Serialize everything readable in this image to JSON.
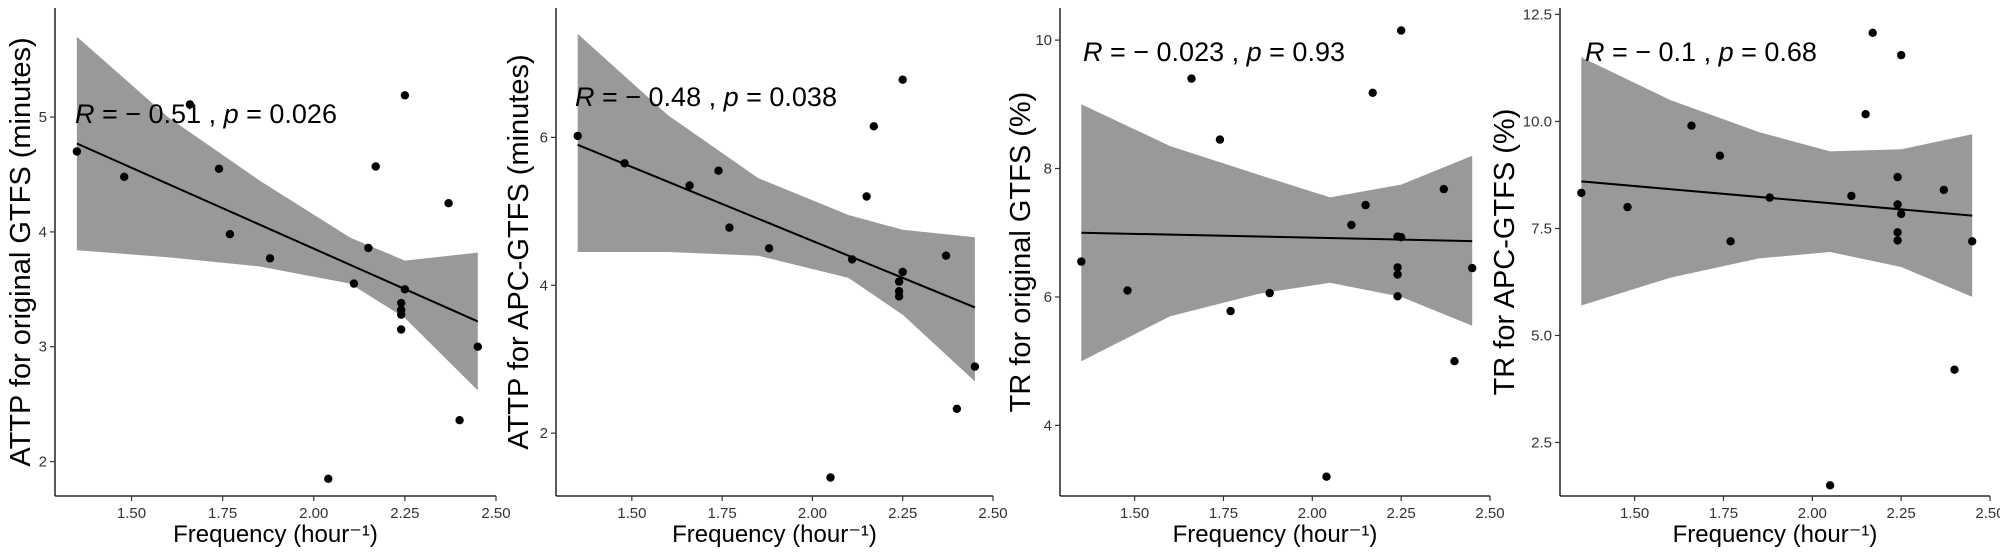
{
  "chart_data": [
    {
      "type": "scatter",
      "xlabel": "Frequency (hour⁻¹)",
      "ylabel": "ATTP for original GTFS (minutes)",
      "annotation": {
        "r_label": "R",
        "r_value": " = − 0.51 , ",
        "p_label": "p",
        "p_value": " = 0.026"
      },
      "xlim": [
        1.29,
        2.5
      ],
      "ylim": [
        1.7,
        5.95
      ],
      "x_ticks": [
        "1.50",
        "1.75",
        "2.00",
        "2.25",
        "2.50"
      ],
      "y_ticks": [
        "2",
        "3",
        "4",
        "5"
      ],
      "grid": false,
      "series": [
        {
          "x": [
            1.35,
            1.48,
            1.66,
            1.74,
            1.77,
            1.88,
            2.04,
            2.11,
            2.15,
            2.17,
            2.24,
            2.24,
            2.24,
            2.24,
            2.25,
            2.25,
            2.37,
            2.4,
            2.45
          ],
          "y": [
            4.7,
            4.48,
            5.11,
            4.55,
            3.98,
            3.77,
            1.85,
            3.55,
            3.86,
            4.57,
            3.38,
            3.28,
            3.32,
            3.15,
            3.5,
            5.19,
            4.25,
            2.36,
            3.0
          ]
        }
      ],
      "fit": {
        "line": [
          [
            1.35,
            4.77
          ],
          [
            2.45,
            3.22
          ]
        ],
        "band": [
          [
            1.35,
            3.84,
            5.7
          ],
          [
            1.6,
            3.78,
            5.0
          ],
          [
            1.85,
            3.7,
            4.45
          ],
          [
            2.1,
            3.55,
            3.95
          ],
          [
            2.25,
            3.25,
            3.75
          ],
          [
            2.45,
            2.62,
            3.82
          ]
        ]
      }
    },
    {
      "type": "scatter",
      "xlabel": "Frequency (hour⁻¹)",
      "ylabel": "ATTP for APC-GTFS (minutes)",
      "annotation": {
        "r_label": "R",
        "r_value": " = − 0.48 , ",
        "p_label": "p",
        "p_value": " = 0.038"
      },
      "xlim": [
        1.29,
        2.5
      ],
      "ylim": [
        1.15,
        7.75
      ],
      "x_ticks": [
        "1.50",
        "1.75",
        "2.00",
        "2.25",
        "2.50"
      ],
      "y_ticks": [
        "2",
        "4",
        "6"
      ],
      "grid": false,
      "series": [
        {
          "x": [
            1.35,
            1.48,
            1.66,
            1.74,
            1.77,
            1.88,
            2.05,
            2.11,
            2.15,
            2.17,
            2.24,
            2.24,
            2.24,
            2.25,
            2.25,
            2.37,
            2.4,
            2.45
          ],
          "y": [
            6.02,
            5.65,
            5.35,
            5.55,
            4.78,
            4.5,
            1.4,
            4.35,
            5.2,
            6.15,
            4.05,
            3.85,
            3.92,
            4.18,
            6.78,
            4.4,
            2.33,
            2.9
          ]
        }
      ],
      "fit": {
        "line": [
          [
            1.35,
            5.9
          ],
          [
            2.45,
            3.7
          ]
        ],
        "band": [
          [
            1.35,
            4.45,
            7.4
          ],
          [
            1.6,
            4.45,
            6.3
          ],
          [
            1.85,
            4.4,
            5.45
          ],
          [
            2.1,
            4.1,
            4.95
          ],
          [
            2.25,
            3.6,
            4.75
          ],
          [
            2.45,
            2.7,
            4.65
          ]
        ]
      }
    },
    {
      "type": "scatter",
      "xlabel": "Frequency (hour⁻¹)",
      "ylabel": "TR for original GTFS (%)",
      "annotation": {
        "r_label": "R",
        "r_value": " = − 0.023 , ",
        "p_label": "p",
        "p_value": " = 0.93"
      },
      "xlim": [
        1.29,
        2.5
      ],
      "ylim": [
        2.9,
        10.5
      ],
      "x_ticks": [
        "1.50",
        "1.75",
        "2.00",
        "2.25",
        "2.50"
      ],
      "y_ticks": [
        "4",
        "6",
        "8",
        "10"
      ],
      "grid": false,
      "series": [
        {
          "x": [
            1.35,
            1.48,
            1.66,
            1.74,
            1.77,
            1.88,
            2.04,
            2.11,
            2.15,
            2.17,
            2.24,
            2.24,
            2.24,
            2.24,
            2.25,
            2.25,
            2.37,
            2.4,
            2.45
          ],
          "y": [
            6.55,
            6.1,
            9.4,
            8.45,
            5.78,
            6.06,
            3.2,
            7.12,
            7.43,
            9.18,
            6.94,
            6.46,
            6.35,
            6.01,
            6.93,
            10.15,
            7.68,
            5.0,
            6.45
          ]
        }
      ],
      "fit": {
        "line": [
          [
            1.35,
            7.0
          ],
          [
            2.45,
            6.87
          ]
        ],
        "band": [
          [
            1.35,
            5.0,
            9.0
          ],
          [
            1.6,
            5.7,
            8.35
          ],
          [
            1.85,
            6.05,
            7.9
          ],
          [
            2.05,
            6.22,
            7.55
          ],
          [
            2.25,
            6.0,
            7.75
          ],
          [
            2.45,
            5.55,
            8.2
          ]
        ]
      }
    },
    {
      "type": "scatter",
      "xlabel": "Frequency (hour⁻¹)",
      "ylabel": "TR for APC-GTFS (%)",
      "annotation": {
        "r_label": "R",
        "r_value": " = − 0.1 , ",
        "p_label": "p",
        "p_value": " = 0.68"
      },
      "xlim": [
        1.29,
        2.5
      ],
      "ylim": [
        1.25,
        12.65
      ],
      "x_ticks": [
        "1.50",
        "1.75",
        "2.00",
        "2.25",
        "2.50"
      ],
      "y_ticks": [
        "2.5",
        "5.0",
        "7.5",
        "10.0",
        "12.5"
      ],
      "grid": false,
      "series": [
        {
          "x": [
            1.35,
            1.48,
            1.66,
            1.74,
            1.77,
            1.88,
            2.05,
            2.11,
            2.15,
            2.17,
            2.24,
            2.24,
            2.24,
            2.24,
            2.25,
            2.25,
            2.37,
            2.4,
            2.45
          ],
          "y": [
            8.33,
            8.0,
            9.9,
            9.2,
            7.2,
            8.22,
            1.5,
            8.26,
            10.17,
            12.07,
            8.7,
            8.06,
            7.41,
            7.22,
            7.84,
            11.55,
            8.4,
            4.2,
            7.2
          ]
        }
      ],
      "fit": {
        "line": [
          [
            1.35,
            8.6
          ],
          [
            2.45,
            7.8
          ]
        ],
        "band": [
          [
            1.35,
            5.7,
            11.5
          ],
          [
            1.6,
            6.35,
            10.5
          ],
          [
            1.85,
            6.8,
            9.75
          ],
          [
            2.05,
            6.95,
            9.3
          ],
          [
            2.25,
            6.6,
            9.35
          ],
          [
            2.45,
            5.9,
            9.7
          ]
        ]
      }
    }
  ]
}
